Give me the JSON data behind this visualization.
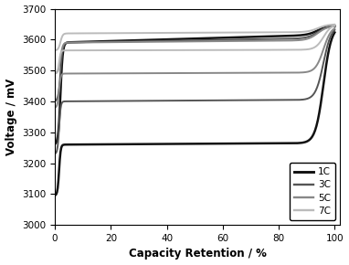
{
  "title": "",
  "xlabel": "Capacity Retention / %",
  "ylabel": "Voltage / mV",
  "xlim": [
    0,
    102
  ],
  "ylim": [
    3000,
    3700
  ],
  "yticks": [
    3000,
    3100,
    3200,
    3300,
    3400,
    3500,
    3600,
    3700
  ],
  "xticks": [
    0,
    20,
    40,
    60,
    80,
    100
  ],
  "curves": {
    "1C": {
      "color": "#111111",
      "linewidth": 1.8,
      "upper_v0": 3260,
      "upper_vflat": 3590,
      "upper_vend": 3645,
      "lower_v0": 3095,
      "lower_vflat": 3260,
      "lower_vend": 3645
    },
    "3C": {
      "color": "#555555",
      "linewidth": 1.4,
      "upper_v0": 3400,
      "upper_vflat": 3590,
      "upper_vend": 3645,
      "lower_v0": 3230,
      "lower_vflat": 3400,
      "lower_vend": 3645
    },
    "5C": {
      "color": "#888888",
      "linewidth": 1.4,
      "upper_v0": 3490,
      "upper_vflat": 3590,
      "upper_vend": 3645,
      "lower_v0": 3380,
      "lower_vflat": 3490,
      "lower_vend": 3645
    },
    "7C": {
      "color": "#bbbbbb",
      "linewidth": 1.4,
      "upper_v0": 3565,
      "upper_vflat": 3620,
      "upper_vend": 3650,
      "lower_v0": 3490,
      "lower_vflat": 3565,
      "lower_vend": 3650
    }
  },
  "legend_order": [
    "1C",
    "3C",
    "5C",
    "7C"
  ],
  "background_color": "#ffffff",
  "figure_facecolor": "#ffffff"
}
